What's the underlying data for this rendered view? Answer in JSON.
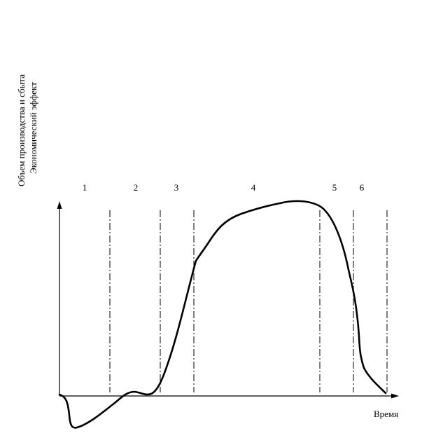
{
  "diagram": {
    "y_axis_label_lines": [
      "Объем производства и сбыта",
      "Экономический эффект"
    ],
    "x_axis_label": "Время",
    "stages": [
      "1",
      "2",
      "3",
      "4",
      "5",
      "6"
    ],
    "line_color": "#000000",
    "background_color": "#ffffff"
  }
}
